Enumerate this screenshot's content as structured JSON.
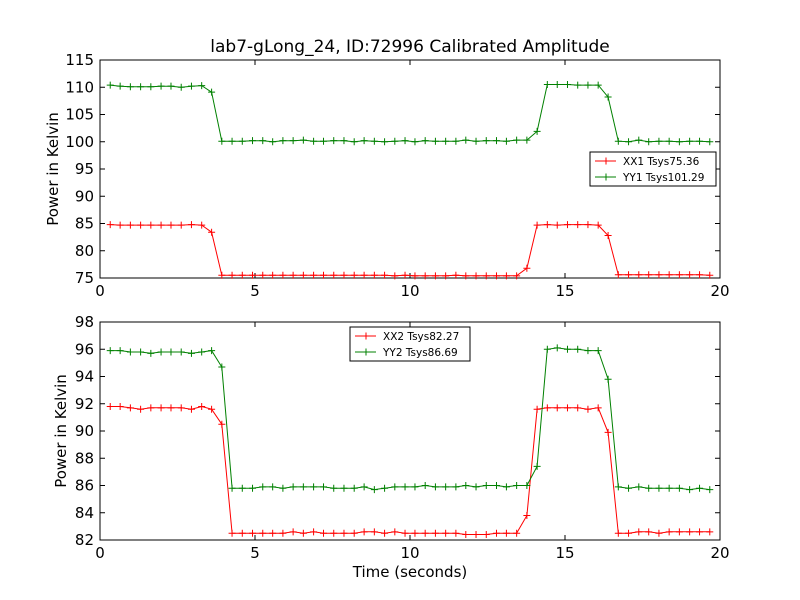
{
  "title": "lab7-gLong_24, ID:72996 Calibrated Amplitude",
  "colors": {
    "red": "#ff0000",
    "green": "#008000"
  },
  "chart_data": [
    {
      "type": "line",
      "ylabel": "Power in Kelvin",
      "xlabel": "",
      "xlim": [
        0,
        20
      ],
      "ylim": [
        75,
        115
      ],
      "xticks": [
        0,
        5,
        10,
        15,
        20
      ],
      "yticks": [
        75,
        80,
        85,
        90,
        95,
        100,
        105,
        110,
        115
      ],
      "grid": false,
      "legend_position": "center-right",
      "x": [
        0.33,
        0.65,
        0.98,
        1.31,
        1.64,
        1.97,
        2.29,
        2.62,
        2.95,
        3.28,
        3.6,
        3.93,
        4.26,
        4.59,
        4.92,
        5.25,
        5.57,
        5.9,
        6.23,
        6.56,
        6.89,
        7.21,
        7.54,
        7.87,
        8.2,
        8.52,
        8.85,
        9.18,
        9.51,
        9.84,
        10.16,
        10.49,
        10.82,
        11.15,
        11.48,
        11.8,
        12.13,
        12.46,
        12.79,
        13.11,
        13.44,
        13.77,
        14.1,
        14.43,
        14.75,
        15.08,
        15.41,
        15.74,
        16.07,
        16.39,
        16.72,
        17.05,
        17.38,
        17.7,
        18.03,
        18.36,
        18.69,
        19.02,
        19.34,
        19.67
      ],
      "series": [
        {
          "name": "XX1 Tsys75.36",
          "color": "#ff0000",
          "values": [
            84.8,
            84.7,
            84.7,
            84.7,
            84.7,
            84.7,
            84.7,
            84.7,
            84.8,
            84.7,
            83.4,
            75.5,
            75.5,
            75.5,
            75.5,
            75.5,
            75.5,
            75.5,
            75.5,
            75.5,
            75.5,
            75.5,
            75.5,
            75.5,
            75.5,
            75.5,
            75.5,
            75.5,
            75.4,
            75.5,
            75.4,
            75.4,
            75.4,
            75.4,
            75.5,
            75.4,
            75.4,
            75.4,
            75.4,
            75.4,
            75.4,
            76.8,
            84.7,
            84.8,
            84.7,
            84.8,
            84.8,
            84.8,
            84.7,
            82.8,
            75.6,
            75.6,
            75.6,
            75.6,
            75.6,
            75.6,
            75.6,
            75.6,
            75.6,
            75.5
          ]
        },
        {
          "name": "YY1 Tsys101.29",
          "color": "#008000",
          "values": [
            110.4,
            110.2,
            110.1,
            110.1,
            110.1,
            110.2,
            110.2,
            110.0,
            110.2,
            110.3,
            109.1,
            100.1,
            100.1,
            100.1,
            100.2,
            100.2,
            100.0,
            100.2,
            100.2,
            100.3,
            100.1,
            100.1,
            100.2,
            100.2,
            100.0,
            100.2,
            100.1,
            100.0,
            100.1,
            100.2,
            100.0,
            100.2,
            100.1,
            100.1,
            100.1,
            100.3,
            100.1,
            100.2,
            100.2,
            100.1,
            100.3,
            100.3,
            101.9,
            110.5,
            110.5,
            110.5,
            110.4,
            110.4,
            110.4,
            108.2,
            100.1,
            100.0,
            100.3,
            100.0,
            100.1,
            100.1,
            100.0,
            100.1,
            100.1,
            100.0
          ]
        }
      ]
    },
    {
      "type": "line",
      "ylabel": "Power in Kelvin",
      "xlabel": "Time (seconds)",
      "xlim": [
        0,
        20
      ],
      "ylim": [
        82,
        98
      ],
      "xticks": [
        0,
        5,
        10,
        15,
        20
      ],
      "yticks": [
        82,
        84,
        86,
        88,
        90,
        92,
        94,
        96,
        98
      ],
      "grid": false,
      "legend_position": "top-center",
      "x": [
        0.33,
        0.65,
        0.98,
        1.31,
        1.64,
        1.97,
        2.29,
        2.62,
        2.95,
        3.28,
        3.6,
        3.93,
        4.26,
        4.59,
        4.92,
        5.25,
        5.57,
        5.9,
        6.23,
        6.56,
        6.89,
        7.21,
        7.54,
        7.87,
        8.2,
        8.52,
        8.85,
        9.18,
        9.51,
        9.84,
        10.16,
        10.49,
        10.82,
        11.15,
        11.48,
        11.8,
        12.13,
        12.46,
        12.79,
        13.11,
        13.44,
        13.77,
        14.1,
        14.43,
        14.75,
        15.08,
        15.41,
        15.74,
        16.07,
        16.39,
        16.72,
        17.05,
        17.38,
        17.7,
        18.03,
        18.36,
        18.69,
        19.02,
        19.34,
        19.67
      ],
      "series": [
        {
          "name": "XX2 Tsys82.27",
          "color": "#ff0000",
          "values": [
            91.8,
            91.8,
            91.7,
            91.6,
            91.7,
            91.7,
            91.7,
            91.7,
            91.6,
            91.8,
            91.6,
            90.5,
            82.5,
            82.5,
            82.5,
            82.5,
            82.5,
            82.5,
            82.6,
            82.5,
            82.6,
            82.5,
            82.5,
            82.5,
            82.5,
            82.6,
            82.6,
            82.5,
            82.6,
            82.5,
            82.5,
            82.5,
            82.5,
            82.5,
            82.5,
            82.4,
            82.4,
            82.4,
            82.5,
            82.5,
            82.5,
            83.8,
            91.6,
            91.7,
            91.7,
            91.7,
            91.7,
            91.6,
            91.7,
            89.9,
            82.5,
            82.5,
            82.6,
            82.6,
            82.5,
            82.6,
            82.6,
            82.6,
            82.6,
            82.6
          ]
        },
        {
          "name": "YY2 Tsys86.69",
          "color": "#008000",
          "values": [
            95.9,
            95.9,
            95.8,
            95.8,
            95.7,
            95.8,
            95.8,
            95.8,
            95.7,
            95.8,
            95.9,
            94.7,
            85.8,
            85.8,
            85.8,
            85.9,
            85.9,
            85.8,
            85.9,
            85.9,
            85.9,
            85.9,
            85.8,
            85.8,
            85.8,
            85.9,
            85.7,
            85.8,
            85.9,
            85.9,
            85.9,
            86.0,
            85.9,
            85.9,
            85.9,
            86.0,
            85.9,
            86.0,
            86.0,
            85.9,
            86.0,
            86.0,
            87.4,
            96.0,
            96.1,
            96.0,
            96.0,
            95.9,
            95.9,
            93.8,
            85.9,
            85.8,
            85.9,
            85.8,
            85.8,
            85.8,
            85.8,
            85.7,
            85.8,
            85.7
          ]
        }
      ]
    }
  ]
}
